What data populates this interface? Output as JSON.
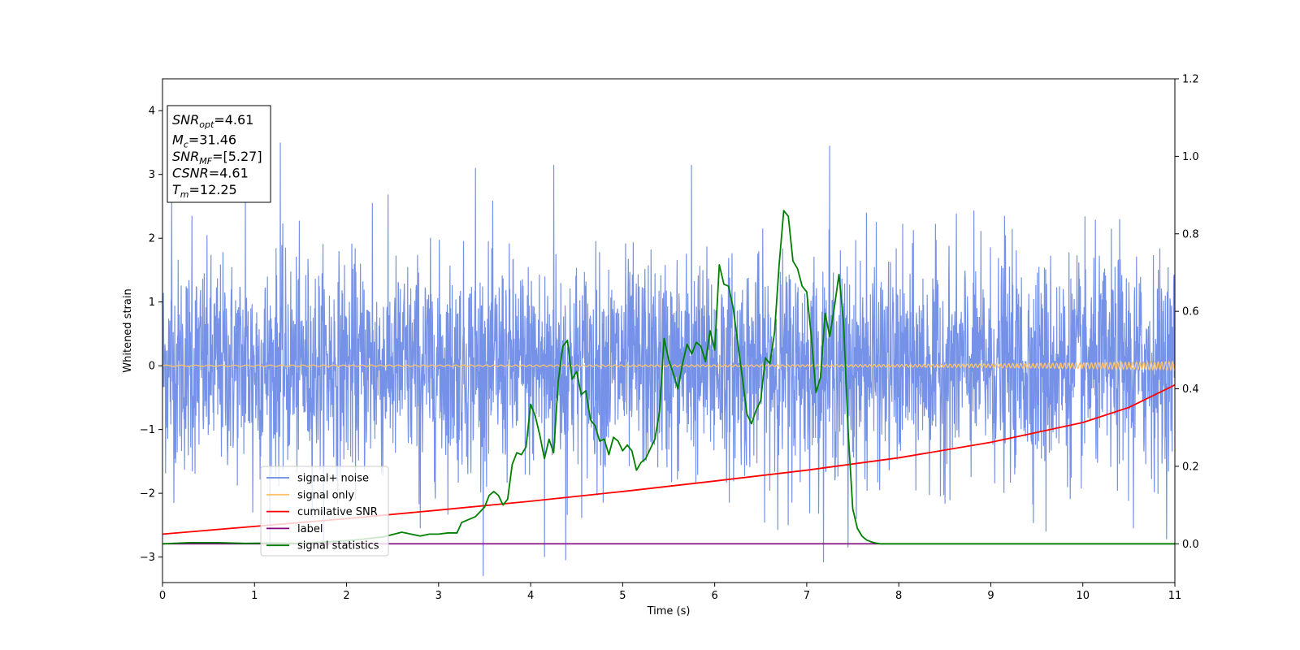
{
  "chart_data": {
    "type": "line",
    "xlabel": "Time (s)",
    "ylabel": "Whitened strain",
    "xlim": [
      0,
      11
    ],
    "ylim_left": [
      -3.4,
      4.5
    ],
    "ylim_right": [
      -0.1,
      1.2
    ],
    "xticks": [
      0,
      1,
      2,
      3,
      4,
      5,
      6,
      7,
      8,
      9,
      10,
      11
    ],
    "yticks_left": [
      -3,
      -2,
      -1,
      0,
      1,
      2,
      3,
      4
    ],
    "yticks_right": [
      0.0,
      0.2,
      0.4,
      0.6,
      0.8,
      1.0,
      1.2
    ],
    "grid": false,
    "legend_location": "lower-left",
    "colors": {
      "signal_noise": "#6a89e6",
      "signal_only": "#ffc46b",
      "cumulative_snr": "#ff0000",
      "label": "#800080",
      "signal_statistics": "#008000"
    },
    "legend": [
      {
        "key": "signal_noise",
        "label": "signal+ noise"
      },
      {
        "key": "signal_only",
        "label": "signal only"
      },
      {
        "key": "cumulative_snr",
        "label": "cumilative SNR"
      },
      {
        "key": "label",
        "label": "label"
      },
      {
        "key": "signal_statistics",
        "label": "signal statistics"
      }
    ],
    "info_box": [
      {
        "base": "SNR",
        "sub": "opt",
        "value": "=4.61"
      },
      {
        "base": "M",
        "sub": "c",
        "value": "=31.46"
      },
      {
        "base": "SNR",
        "sub": "MF",
        "value": "=[5.27]"
      },
      {
        "base": "CSNR",
        "sub": "",
        "value": "=4.61"
      },
      {
        "base": "T",
        "sub": "m",
        "value": "=12.25"
      }
    ],
    "noise_spikes": [
      {
        "x": 0.1,
        "y": 2.6
      },
      {
        "x": 0.32,
        "y": 2.35
      },
      {
        "x": 0.9,
        "y": 2.6
      },
      {
        "x": 1.28,
        "y": 3.5
      },
      {
        "x": 2.28,
        "y": 2.55
      },
      {
        "x": 3.4,
        "y": 3.1
      },
      {
        "x": 4.25,
        "y": 3.15
      },
      {
        "x": 5.75,
        "y": 3.15
      },
      {
        "x": 7.25,
        "y": 3.45
      },
      {
        "x": 7.65,
        "y": 2.4
      },
      {
        "x": 9.15,
        "y": 2.35
      },
      {
        "x": 10.4,
        "y": 2.3
      },
      {
        "x": 4.15,
        "y": -3.0
      },
      {
        "x": 4.38,
        "y": -3.05
      },
      {
        "x": 7.45,
        "y": -2.85
      },
      {
        "x": 2.8,
        "y": -2.55
      },
      {
        "x": 6.8,
        "y": -2.5
      },
      {
        "x": 9.6,
        "y": -2.6
      },
      {
        "x": 10.55,
        "y": -2.55
      },
      {
        "x": 0.98,
        "y": -2.3
      }
    ],
    "cumulative_snr": {
      "axis": "right",
      "x": [
        0,
        1,
        2,
        3,
        4,
        5,
        6,
        7,
        8,
        9,
        10,
        10.5,
        11
      ],
      "y": [
        0.025,
        0.045,
        0.065,
        0.087,
        0.11,
        0.135,
        0.162,
        0.19,
        0.222,
        0.262,
        0.313,
        0.352,
        0.41
      ]
    },
    "label_series": {
      "axis": "right",
      "x": [
        0,
        11
      ],
      "y": [
        0.0,
        0.0
      ]
    },
    "signal_only_envelope": {
      "axis": "left",
      "x": [
        0,
        7,
        8,
        9,
        10,
        10.5,
        11
      ],
      "amplitude": [
        0.01,
        0.015,
        0.02,
        0.03,
        0.045,
        0.055,
        0.065
      ]
    },
    "signal_statistics": {
      "axis": "right",
      "x": [
        0,
        0.3,
        0.6,
        0.9,
        1.2,
        1.5,
        1.8,
        2.1,
        2.4,
        2.6,
        2.7,
        2.8,
        2.9,
        3.0,
        3.1,
        3.2,
        3.25,
        3.3,
        3.4,
        3.5,
        3.55,
        3.6,
        3.65,
        3.7,
        3.75,
        3.8,
        3.85,
        3.9,
        3.95,
        4.0,
        4.05,
        4.1,
        4.15,
        4.2,
        4.25,
        4.3,
        4.35,
        4.4,
        4.45,
        4.5,
        4.55,
        4.6,
        4.65,
        4.7,
        4.75,
        4.8,
        4.85,
        4.9,
        4.95,
        5.0,
        5.05,
        5.1,
        5.15,
        5.2,
        5.25,
        5.3,
        5.35,
        5.4,
        5.45,
        5.5,
        5.55,
        5.6,
        5.65,
        5.7,
        5.75,
        5.8,
        5.85,
        5.9,
        5.95,
        6.0,
        6.05,
        6.1,
        6.15,
        6.2,
        6.25,
        6.3,
        6.35,
        6.4,
        6.45,
        6.5,
        6.55,
        6.6,
        6.65,
        6.7,
        6.75,
        6.8,
        6.85,
        6.9,
        6.95,
        7.0,
        7.05,
        7.1,
        7.15,
        7.2,
        7.25,
        7.3,
        7.35,
        7.4,
        7.45,
        7.5,
        7.55,
        7.6,
        7.65,
        7.7,
        7.75,
        7.8,
        7.85,
        7.9,
        7.95,
        8.0,
        8.05,
        8.1,
        8.15,
        8.2,
        8.3,
        8.4,
        8.5,
        8.7,
        9.0,
        11.0
      ],
      "y": [
        0.0,
        0.003,
        0.003,
        0.001,
        0.002,
        0.001,
        0.005,
        0.01,
        0.018,
        0.03,
        0.025,
        0.02,
        0.025,
        0.025,
        0.028,
        0.028,
        0.055,
        0.06,
        0.07,
        0.095,
        0.125,
        0.135,
        0.125,
        0.1,
        0.115,
        0.205,
        0.235,
        0.23,
        0.25,
        0.36,
        0.33,
        0.28,
        0.22,
        0.27,
        0.235,
        0.42,
        0.51,
        0.525,
        0.425,
        0.445,
        0.385,
        0.395,
        0.32,
        0.305,
        0.265,
        0.27,
        0.23,
        0.275,
        0.265,
        0.24,
        0.255,
        0.24,
        0.19,
        0.21,
        0.22,
        0.245,
        0.27,
        0.34,
        0.53,
        0.475,
        0.44,
        0.4,
        0.465,
        0.515,
        0.49,
        0.52,
        0.51,
        0.47,
        0.55,
        0.5,
        0.72,
        0.67,
        0.665,
        0.61,
        0.52,
        0.43,
        0.335,
        0.31,
        0.345,
        0.37,
        0.48,
        0.465,
        0.545,
        0.72,
        0.86,
        0.845,
        0.73,
        0.71,
        0.665,
        0.65,
        0.535,
        0.39,
        0.43,
        0.595,
        0.535,
        0.61,
        0.695,
        0.57,
        0.29,
        0.09,
        0.04,
        0.02,
        0.01,
        0.005,
        0.002,
        0.0,
        0.0,
        0.0,
        0.0,
        0.0,
        0.0,
        0.0,
        0.0,
        0.0,
        0.0,
        0.0,
        0.0,
        0.0,
        0.0,
        0.0
      ]
    }
  }
}
